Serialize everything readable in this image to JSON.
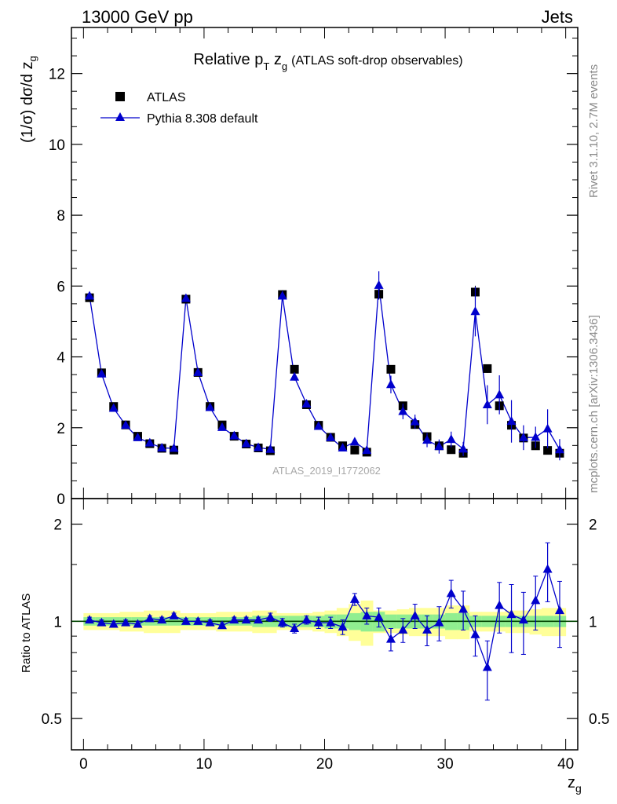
{
  "header": {
    "process": "13000 GeV pp",
    "category": "Jets"
  },
  "plot_title": {
    "main": "Relative p",
    "main_sub": "T",
    "main_tail": " z",
    "main_tail_sub": "g",
    "paren": "(ATLAS soft-drop observables)"
  },
  "side_labels": {
    "rivet": "Rivet 3.1.10,  2.7M events",
    "mcplots": "mcplots.cern.ch [arXiv:1306.3436]"
  },
  "watermark": "ATLAS_2019_I1772062",
  "colors": {
    "mc": "#0000cc",
    "data": "#000000",
    "band_inner": "#90ee90",
    "band_outer": "#ffff99",
    "side_text": "#8a8a8a",
    "ratio_line": "#004400"
  },
  "chart_data": [
    {
      "type": "scatter",
      "panel": "main",
      "ylabel": "(1/σ) dσ/d z",
      "ylabel_sub": "g",
      "xlim": [
        -1,
        41
      ],
      "ylim": [
        0,
        13.3
      ],
      "yticks": [
        0,
        2,
        4,
        6,
        8,
        10,
        12
      ],
      "legend_position": "top-left",
      "x": [
        0.5,
        1.5,
        2.5,
        3.5,
        4.5,
        5.5,
        6.5,
        7.5,
        8.5,
        9.5,
        10.5,
        11.5,
        12.5,
        13.5,
        14.5,
        15.5,
        16.5,
        17.5,
        18.5,
        19.5,
        20.5,
        21.5,
        22.5,
        23.5,
        24.5,
        25.5,
        26.5,
        27.5,
        28.5,
        29.5,
        30.5,
        31.5,
        32.5,
        33.5,
        34.5,
        35.5,
        36.5,
        37.5,
        38.5,
        39.5
      ],
      "series": [
        {
          "name": "ATLAS",
          "marker": "square",
          "values": [
            5.67,
            3.55,
            2.6,
            2.08,
            1.76,
            1.55,
            1.42,
            1.37,
            5.63,
            3.56,
            2.6,
            2.08,
            1.76,
            1.54,
            1.43,
            1.35,
            5.76,
            3.65,
            2.65,
            2.07,
            1.73,
            1.49,
            1.37,
            1.31,
            5.77,
            3.65,
            2.62,
            2.09,
            1.75,
            1.49,
            1.38,
            1.28,
            5.83,
            3.67,
            2.62,
            2.07,
            1.71,
            1.49,
            1.36,
            1.28
          ],
          "errors": [
            0.05,
            0.05,
            0.05,
            0.05,
            0.05,
            0.05,
            0.04,
            0.04,
            0.06,
            0.05,
            0.05,
            0.05,
            0.05,
            0.04,
            0.04,
            0.04,
            0.12,
            0.08,
            0.07,
            0.06,
            0.05,
            0.05,
            0.05,
            0.05,
            0.15,
            0.1,
            0.08,
            0.07,
            0.06,
            0.06,
            0.06,
            0.06,
            0.18,
            0.12,
            0.1,
            0.09,
            0.08,
            0.08,
            0.08,
            0.08
          ]
        },
        {
          "name": "Pythia 8.308 default",
          "marker": "triangle",
          "values": [
            5.72,
            3.52,
            2.55,
            2.07,
            1.72,
            1.57,
            1.43,
            1.42,
            5.65,
            3.56,
            2.57,
            2.01,
            1.77,
            1.55,
            1.44,
            1.39,
            5.72,
            3.43,
            2.67,
            2.04,
            1.72,
            1.43,
            1.6,
            1.36,
            6.02,
            3.22,
            2.46,
            2.17,
            1.65,
            1.47,
            1.67,
            1.4,
            5.28,
            2.65,
            2.93,
            2.18,
            1.72,
            1.73,
            1.97,
            1.38
          ],
          "errors": [
            0.06,
            0.05,
            0.05,
            0.05,
            0.05,
            0.05,
            0.05,
            0.05,
            0.07,
            0.06,
            0.05,
            0.05,
            0.05,
            0.05,
            0.05,
            0.05,
            0.14,
            0.1,
            0.09,
            0.07,
            0.07,
            0.07,
            0.1,
            0.08,
            0.4,
            0.25,
            0.22,
            0.2,
            0.2,
            0.2,
            0.22,
            0.2,
            0.7,
            0.55,
            0.55,
            0.6,
            0.35,
            0.3,
            0.55,
            0.3
          ]
        }
      ]
    },
    {
      "type": "scatter",
      "panel": "ratio",
      "xlabel": "z",
      "xlabel_sub": "g",
      "ylabel": "Ratio to ATLAS",
      "xlim": [
        -1,
        41
      ],
      "ylim": [
        0.4,
        2.4
      ],
      "yticks": [
        0.5,
        1,
        2
      ],
      "ytick_labels": [
        "0.5",
        "1",
        "2"
      ],
      "xticks": [
        0,
        10,
        20,
        30,
        40
      ],
      "xtick_labels": [
        "0",
        "10",
        "20",
        "30",
        "40"
      ],
      "reference_line": 1,
      "band_inner": [
        0.03,
        0.03,
        0.03,
        0.03,
        0.03,
        0.03,
        0.03,
        0.03,
        0.03,
        0.03,
        0.03,
        0.03,
        0.03,
        0.03,
        0.04,
        0.04,
        0.04,
        0.04,
        0.04,
        0.04,
        0.05,
        0.05,
        0.06,
        0.07,
        0.07,
        0.05,
        0.05,
        0.05,
        0.05,
        0.05,
        0.06,
        0.06,
        0.04,
        0.04,
        0.04,
        0.04,
        0.04,
        0.04,
        0.04,
        0.04
      ],
      "band_outer": [
        0.06,
        0.06,
        0.06,
        0.07,
        0.07,
        0.08,
        0.08,
        0.08,
        0.06,
        0.06,
        0.06,
        0.07,
        0.07,
        0.07,
        0.08,
        0.08,
        0.06,
        0.06,
        0.06,
        0.07,
        0.08,
        0.1,
        0.13,
        0.16,
        0.08,
        0.08,
        0.09,
        0.1,
        0.1,
        0.1,
        0.12,
        0.12,
        0.07,
        0.07,
        0.07,
        0.08,
        0.08,
        0.09,
        0.1,
        0.1
      ],
      "series": [
        {
          "name": "Pythia 8.308 default",
          "values": [
            1.01,
            0.99,
            0.98,
            0.99,
            0.98,
            1.02,
            1.01,
            1.04,
            1.0,
            1.0,
            0.99,
            0.97,
            1.01,
            1.01,
            1.01,
            1.03,
            0.99,
            0.95,
            1.01,
            0.99,
            0.99,
            0.96,
            1.17,
            1.04,
            1.03,
            0.88,
            0.94,
            1.04,
            0.94,
            0.99,
            1.22,
            1.09,
            0.91,
            0.72,
            1.12,
            1.05,
            1.01,
            1.16,
            1.45,
            1.08
          ],
          "errors": [
            0.02,
            0.02,
            0.02,
            0.02,
            0.02,
            0.02,
            0.02,
            0.02,
            0.02,
            0.02,
            0.02,
            0.02,
            0.02,
            0.02,
            0.02,
            0.03,
            0.03,
            0.03,
            0.03,
            0.04,
            0.04,
            0.05,
            0.05,
            0.06,
            0.07,
            0.07,
            0.08,
            0.09,
            0.1,
            0.12,
            0.12,
            0.15,
            0.13,
            0.15,
            0.2,
            0.25,
            0.22,
            0.22,
            0.3,
            0.25
          ]
        }
      ]
    }
  ]
}
